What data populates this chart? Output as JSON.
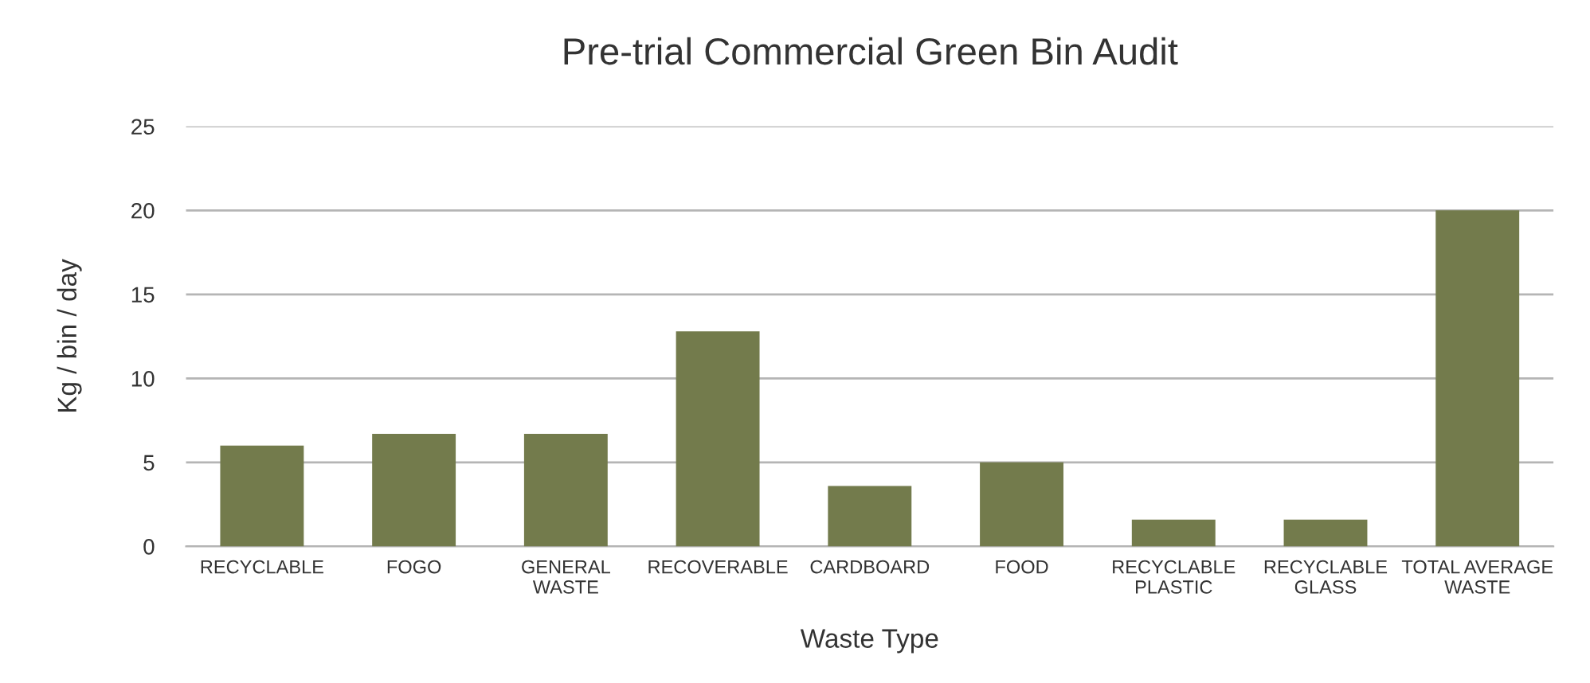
{
  "chart_data": {
    "type": "bar",
    "title": "Pre-trial Commercial Green Bin Audit",
    "xlabel": "Waste Type",
    "ylabel": "Kg / bin / day",
    "categories": [
      "RECYCLABLE",
      "FOGO",
      "GENERAL\nWASTE",
      "RECOVERABLE",
      "CARDBOARD",
      "FOOD",
      "RECYCLABLE\nPLASTIC",
      "RECYCLABLE\nGLASS",
      "TOTAL AVERAGE\nWASTE"
    ],
    "values": [
      6.0,
      6.7,
      6.7,
      12.8,
      3.6,
      5.0,
      1.6,
      1.6,
      20.0
    ],
    "color": "#737b4c",
    "ylim": [
      0,
      25
    ],
    "yticks": [
      0,
      5,
      10,
      15,
      20,
      25
    ],
    "grid": "y",
    "legend": false
  }
}
